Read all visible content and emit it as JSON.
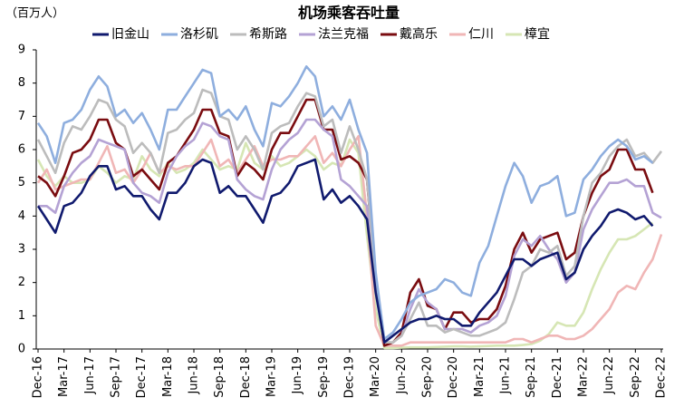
{
  "chart_data": {
    "type": "line",
    "title": "机场乘客吞吐量",
    "y_label": "（百万人）",
    "categories": [
      "Dec-16",
      null,
      null,
      "Mar-17",
      null,
      null,
      "Jun-17",
      null,
      null,
      "Sep-17",
      null,
      null,
      "Dec-17",
      null,
      null,
      "Mar-18",
      null,
      null,
      "Jun-18",
      null,
      null,
      "Sep-18",
      null,
      null,
      "Dec-18",
      null,
      null,
      "Mar-19",
      null,
      null,
      "Jun-19",
      null,
      null,
      "Sep-19",
      null,
      null,
      "Dec-19",
      null,
      null,
      "Mar-20",
      null,
      null,
      "Jun-20",
      null,
      null,
      "Sep-20",
      null,
      null,
      "Dec-20",
      null,
      null,
      "Mar-21",
      null,
      null,
      "Jun-21",
      null,
      null,
      "Sep-21",
      null,
      null,
      "Dec-21",
      null,
      null,
      "Mar-22",
      null,
      null,
      "Jun-22",
      null,
      null,
      "Sep-22",
      null,
      null,
      "Dec-22"
    ],
    "ylim": [
      0,
      9
    ],
    "yticks": [
      0,
      1,
      2,
      3,
      4,
      5,
      6,
      7,
      8,
      9
    ],
    "grid": false,
    "legend": "top",
    "series": [
      {
        "name": "旧金山",
        "color": "#101a6e",
        "values": [
          4.3,
          3.9,
          3.5,
          4.3,
          4.4,
          4.7,
          5.2,
          5.5,
          5.5,
          4.8,
          4.9,
          4.6,
          4.6,
          4.2,
          3.9,
          4.7,
          4.7,
          5.0,
          5.5,
          5.7,
          5.6,
          4.7,
          4.9,
          4.6,
          4.6,
          4.2,
          3.8,
          4.6,
          4.7,
          5.0,
          5.5,
          5.6,
          5.7,
          4.5,
          4.8,
          4.4,
          4.6,
          4.3,
          3.9,
          1.7,
          0.2,
          0.4,
          0.6,
          0.8,
          0.9,
          0.9,
          1.0,
          0.9,
          0.9,
          0.7,
          0.7,
          1.1,
          1.4,
          1.7,
          2.2,
          2.7,
          2.7,
          2.5,
          2.7,
          2.8,
          2.9,
          2.1,
          2.3,
          3.0,
          3.4,
          3.7,
          4.1,
          4.2,
          4.1,
          3.9,
          4.0,
          3.7,
          null
        ]
      },
      {
        "name": "洛杉矶",
        "color": "#8eaede",
        "values": [
          6.8,
          6.4,
          5.6,
          6.8,
          6.9,
          7.2,
          7.8,
          8.2,
          7.9,
          7.0,
          7.2,
          6.8,
          7.1,
          6.6,
          6.0,
          7.2,
          7.2,
          7.6,
          8.0,
          8.4,
          8.3,
          7.0,
          7.2,
          6.9,
          7.3,
          6.6,
          6.1,
          7.4,
          7.3,
          7.6,
          8.0,
          8.5,
          8.2,
          7.0,
          7.3,
          6.9,
          7.5,
          6.6,
          5.9,
          2.3,
          0.3,
          0.5,
          0.9,
          1.4,
          1.6,
          1.7,
          1.8,
          2.1,
          2.0,
          1.7,
          1.6,
          2.6,
          3.1,
          4.0,
          4.9,
          5.6,
          5.2,
          4.4,
          4.9,
          5.0,
          5.2,
          4.0,
          4.1,
          5.1,
          5.4,
          5.8,
          6.1,
          6.3,
          6.1,
          5.7,
          5.8,
          5.6,
          null
        ]
      },
      {
        "name": "希斯路",
        "color": "#bcbcbc",
        "values": [
          6.3,
          5.8,
          5.3,
          6.2,
          6.7,
          6.6,
          7.0,
          7.5,
          7.4,
          6.9,
          6.7,
          5.9,
          6.2,
          5.9,
          5.3,
          6.5,
          6.6,
          6.9,
          7.1,
          7.8,
          7.7,
          7.0,
          6.9,
          6.0,
          6.4,
          6.0,
          5.4,
          6.5,
          6.7,
          6.8,
          7.3,
          7.7,
          7.6,
          6.7,
          6.9,
          5.9,
          6.7,
          6.0,
          5.1,
          2.1,
          0.2,
          0.2,
          0.4,
          0.9,
          1.4,
          0.7,
          0.7,
          0.5,
          0.6,
          0.5,
          0.4,
          0.4,
          0.5,
          0.6,
          0.8,
          1.5,
          2.3,
          2.5,
          3.0,
          2.9,
          3.1,
          2.2,
          2.5,
          4.0,
          5.0,
          5.3,
          5.8,
          6.1,
          6.3,
          5.8,
          5.9,
          5.6,
          5.95
        ]
      },
      {
        "name": "法兰克福",
        "color": "#b4a2d4",
        "values": [
          4.3,
          4.3,
          4.1,
          4.9,
          5.3,
          5.6,
          5.8,
          6.3,
          6.2,
          6.1,
          6.0,
          5.0,
          4.7,
          4.6,
          4.4,
          5.3,
          5.8,
          6.1,
          6.3,
          6.8,
          6.7,
          6.4,
          6.3,
          5.1,
          4.8,
          4.6,
          4.5,
          5.4,
          6.0,
          6.3,
          6.5,
          6.9,
          6.9,
          6.6,
          6.4,
          5.1,
          4.9,
          4.6,
          4.3,
          2.0,
          0.2,
          0.2,
          0.4,
          1.2,
          1.8,
          1.4,
          1.2,
          0.6,
          0.6,
          0.6,
          0.5,
          0.7,
          0.8,
          1.0,
          1.6,
          2.8,
          3.3,
          3.1,
          3.4,
          3.0,
          2.7,
          2.0,
          2.3,
          3.6,
          4.2,
          4.6,
          5.0,
          5.0,
          5.1,
          4.9,
          4.9,
          4.1,
          3.95
        ]
      },
      {
        "name": "戴高乐",
        "color": "#7a0c10",
        "values": [
          5.2,
          5.0,
          4.6,
          5.2,
          5.9,
          6.0,
          6.3,
          6.9,
          6.9,
          6.2,
          6.0,
          5.2,
          5.4,
          5.1,
          4.8,
          5.6,
          5.8,
          6.2,
          6.6,
          7.2,
          7.2,
          6.5,
          6.4,
          5.2,
          5.6,
          5.4,
          5.1,
          6.0,
          6.5,
          6.5,
          7.0,
          7.5,
          7.5,
          6.6,
          6.6,
          5.7,
          5.8,
          5.6,
          5.1,
          2.0,
          0.1,
          0.2,
          0.5,
          1.7,
          2.1,
          1.3,
          1.2,
          0.6,
          1.1,
          1.1,
          0.8,
          0.9,
          0.9,
          1.2,
          1.9,
          3.0,
          3.5,
          2.9,
          3.3,
          3.4,
          3.5,
          2.7,
          2.9,
          4.0,
          4.7,
          5.2,
          5.4,
          6.0,
          6.0,
          5.4,
          5.4,
          4.7,
          null
        ]
      },
      {
        "name": "仁川",
        "color": "#f0b6b6",
        "values": [
          5.0,
          5.4,
          4.8,
          4.9,
          5.0,
          5.1,
          5.1,
          5.6,
          6.1,
          5.3,
          5.4,
          5.0,
          5.4,
          5.9,
          5.3,
          5.5,
          5.4,
          5.5,
          5.5,
          5.9,
          6.3,
          5.5,
          5.7,
          5.3,
          5.7,
          6.1,
          5.5,
          5.7,
          5.7,
          5.8,
          5.8,
          6.1,
          6.4,
          5.6,
          5.9,
          5.5,
          6.0,
          6.4,
          4.0,
          0.7,
          0.1,
          0.1,
          0.1,
          0.2,
          0.2,
          0.2,
          0.2,
          0.2,
          0.2,
          0.2,
          0.2,
          0.2,
          0.2,
          0.2,
          0.2,
          0.3,
          0.3,
          0.2,
          0.3,
          0.4,
          0.4,
          0.3,
          0.3,
          0.4,
          0.6,
          0.9,
          1.2,
          1.7,
          1.9,
          1.8,
          2.3,
          2.7,
          3.45
        ]
      },
      {
        "name": "樟宜",
        "color": "#d6e6b4",
        "values": [
          5.7,
          5.2,
          4.9,
          5.2,
          5.0,
          5.0,
          5.1,
          5.5,
          5.3,
          5.0,
          5.2,
          5.1,
          5.8,
          5.4,
          5.2,
          5.6,
          5.3,
          5.4,
          5.6,
          6.0,
          5.7,
          5.4,
          5.5,
          5.4,
          6.2,
          5.6,
          5.4,
          5.8,
          5.5,
          5.6,
          5.8,
          6.0,
          5.8,
          5.4,
          5.6,
          5.5,
          6.3,
          5.9,
          3.4,
          1.2,
          0.03,
          0.03,
          0.04,
          0.05,
          0.05,
          0.05,
          0.06,
          0.07,
          0.08,
          0.08,
          0.07,
          0.08,
          0.09,
          0.1,
          0.1,
          0.1,
          0.12,
          0.15,
          0.25,
          0.45,
          0.8,
          0.7,
          0.7,
          1.1,
          1.8,
          2.4,
          2.9,
          3.3,
          3.3,
          3.4,
          3.6,
          3.8,
          null
        ]
      }
    ]
  }
}
